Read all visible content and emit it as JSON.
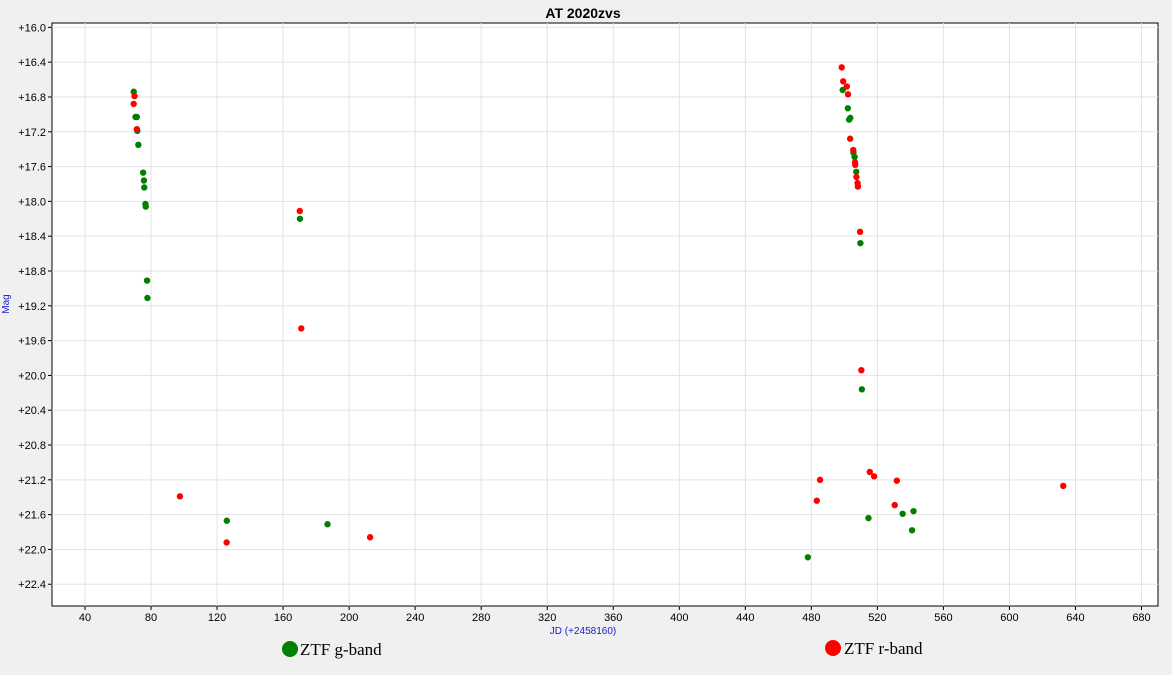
{
  "chart_data": {
    "type": "scatter",
    "title": "AT 2020zvs",
    "xlabel": "JD (+2458160)",
    "ylabel": "Mag",
    "xlim": [
      20,
      690
    ],
    "ylim": [
      22.65,
      15.95
    ],
    "y_inverted": true,
    "grid": true,
    "legend_position": "bottom",
    "x_ticks": [
      40,
      80,
      120,
      160,
      200,
      240,
      280,
      320,
      360,
      400,
      440,
      480,
      520,
      560,
      600,
      640,
      680
    ],
    "x_tick_labels": [
      "40",
      "80",
      "120",
      "160",
      "200",
      "240",
      "280",
      "320",
      "360",
      "400",
      "440",
      "480",
      "520",
      "560",
      "600",
      "640",
      "680"
    ],
    "y_ticks": [
      16.0,
      16.4,
      16.8,
      17.2,
      17.6,
      18.0,
      18.4,
      18.8,
      19.2,
      19.6,
      20.0,
      20.4,
      20.8,
      21.2,
      21.6,
      22.0,
      22.4
    ],
    "y_tick_labels": [
      "+16.0",
      "+16.4",
      "+16.8",
      "+17.2",
      "+17.6",
      "+18.0",
      "+18.4",
      "+18.8",
      "+19.2",
      "+19.6",
      "+20.0",
      "+20.4",
      "+20.8",
      "+21.2",
      "+21.6",
      "+22.0",
      "+22.4"
    ],
    "series": [
      {
        "name": "ZTF g-band",
        "color": "#008000",
        "points": [
          [
            69.5,
            16.74
          ],
          [
            70.6,
            17.03
          ],
          [
            71.4,
            17.03
          ],
          [
            71.7,
            17.19
          ],
          [
            72.3,
            17.35
          ],
          [
            75.2,
            17.67
          ],
          [
            75.7,
            17.76
          ],
          [
            75.9,
            17.84
          ],
          [
            76.6,
            18.03
          ],
          [
            76.8,
            18.06
          ],
          [
            77.6,
            18.91
          ],
          [
            77.8,
            19.11
          ],
          [
            125.9,
            21.67
          ],
          [
            170.2,
            18.2
          ],
          [
            186.9,
            21.71
          ],
          [
            477.9,
            22.09
          ],
          [
            499.0,
            16.72
          ],
          [
            502.1,
            16.93
          ],
          [
            502.9,
            17.06
          ],
          [
            503.6,
            17.04
          ],
          [
            505.5,
            17.44
          ],
          [
            506.2,
            17.49
          ],
          [
            507.2,
            17.66
          ],
          [
            509.7,
            18.48
          ],
          [
            510.6,
            20.16
          ],
          [
            514.6,
            21.64
          ],
          [
            535.3,
            21.59
          ],
          [
            541.0,
            21.78
          ],
          [
            541.9,
            21.56
          ]
        ]
      },
      {
        "name": "ZTF r-band",
        "color": "#ff0000",
        "points": [
          [
            69.5,
            16.88
          ],
          [
            70.0,
            16.79
          ],
          [
            71.4,
            17.17
          ],
          [
            97.5,
            21.39
          ],
          [
            125.8,
            21.92
          ],
          [
            170.1,
            18.11
          ],
          [
            171.0,
            19.46
          ],
          [
            212.7,
            21.86
          ],
          [
            483.3,
            21.44
          ],
          [
            485.3,
            21.2
          ],
          [
            498.4,
            16.46
          ],
          [
            499.3,
            16.62
          ],
          [
            501.5,
            16.68
          ],
          [
            502.2,
            16.77
          ],
          [
            503.5,
            17.28
          ],
          [
            505.4,
            17.41
          ],
          [
            506.5,
            17.55
          ],
          [
            506.6,
            17.58
          ],
          [
            507.3,
            17.72
          ],
          [
            508.0,
            17.79
          ],
          [
            508.2,
            17.83
          ],
          [
            509.5,
            18.35
          ],
          [
            510.3,
            19.94
          ],
          [
            515.4,
            21.11
          ],
          [
            518.0,
            21.16
          ],
          [
            530.5,
            21.49
          ],
          [
            531.8,
            21.21
          ],
          [
            632.6,
            21.27
          ]
        ]
      }
    ]
  }
}
